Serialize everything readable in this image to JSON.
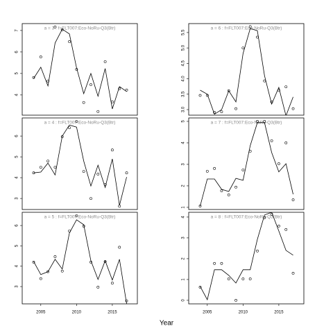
{
  "xlabel": "Year",
  "chart_data": [
    {
      "type": "line",
      "title": "a = 3 : f=FLT007:Eco-NoRu-Q3(Btr)",
      "x": [
        2004,
        2005,
        2006,
        2007,
        2008,
        2009,
        2010,
        2011,
        2012,
        2013,
        2014,
        2015,
        2016,
        2017
      ],
      "xlim": [
        2002.4,
        2018.5
      ],
      "ylim": [
        3.06,
        7.32
      ],
      "yticks": [
        4,
        5,
        6,
        7
      ],
      "series": [
        {
          "marker": "circle",
          "color": "#000000",
          "values": [
            4.81,
            5.77,
            4.65,
            7.16,
            7.03,
            6.48,
            5.19,
            3.65,
            4.48,
            3.23,
            5.55,
            3.68,
            4.29,
            4.23
          ]
        },
        {
          "marker": "none",
          "color": "#000000",
          "values": [
            4.77,
            5.29,
            4.42,
            6.42,
            7.06,
            6.84,
            5.26,
            4.06,
            5.0,
            3.94,
            5.23,
            3.35,
            4.39,
            4.16
          ]
        }
      ]
    },
    {
      "type": "line",
      "title": "a = 6 : f=FLT007:Eco-NoRu-Q3(Btr)",
      "x": [
        2004,
        2005,
        2006,
        2007,
        2008,
        2009,
        2010,
        2011,
        2012,
        2013,
        2014,
        2015,
        2016,
        2017
      ],
      "xlim": [
        2002.4,
        2018.5
      ],
      "ylim": [
        2.82,
        5.79
      ],
      "yticks": [
        {
          "value": 3,
          "label": "3.0"
        },
        3.5,
        {
          "value": 4,
          "label": "4.0"
        },
        4.5,
        {
          "value": 5,
          "label": "5.0"
        },
        5.5
      ],
      "series": [
        {
          "marker": "circle",
          "color": "#000000",
          "values": [
            3.46,
            3.46,
            2.91,
            2.93,
            3.61,
            3.03,
            5.0,
            5.69,
            5.35,
            3.93,
            3.25,
            3.63,
            3.74,
            3.03
          ]
        },
        {
          "marker": "none",
          "color": "#000000",
          "values": [
            3.63,
            3.5,
            2.85,
            3.0,
            3.61,
            3.25,
            4.82,
            5.63,
            5.56,
            4.1,
            3.18,
            3.72,
            2.8,
            3.41
          ]
        }
      ]
    },
    {
      "type": "line",
      "title": "a = 4 : f=FLT007:Eco-NoRu-Q3(Btr)",
      "x": [
        2004,
        2005,
        2006,
        2007,
        2008,
        2009,
        2010,
        2011,
        2012,
        2013,
        2014,
        2015,
        2016,
        2017
      ],
      "xlim": [
        2002.4,
        2018.5
      ],
      "ylim": [
        2.47,
        6.87
      ],
      "yticks": [
        3,
        4,
        5,
        6
      ],
      "series": [
        {
          "marker": "circle",
          "color": "#000000",
          "values": [
            4.23,
            4.5,
            4.8,
            4.5,
            5.97,
            6.4,
            6.7,
            4.3,
            3.0,
            4.17,
            3.67,
            5.33,
            2.63,
            4.23
          ]
        },
        {
          "marker": "none",
          "color": "#000000",
          "values": [
            4.23,
            4.27,
            4.7,
            4.13,
            6.0,
            6.53,
            6.43,
            4.8,
            3.6,
            4.6,
            3.53,
            4.9,
            2.67,
            4.03
          ]
        }
      ]
    },
    {
      "type": "line",
      "title": "a = 7 : f=FLT007:Eco-NoRu-Q3(Btr)",
      "x": [
        2004,
        2005,
        2006,
        2007,
        2008,
        2009,
        2010,
        2011,
        2012,
        2013,
        2014,
        2015,
        2016,
        2017
      ],
      "xlim": [
        2002.4,
        2018.5
      ],
      "ylim": [
        0.9,
        5.16
      ],
      "yticks": [
        1,
        2,
        3,
        4,
        5
      ],
      "series": [
        {
          "marker": "circle",
          "color": "#000000",
          "values": [
            1.06,
            2.68,
            2.81,
            1.77,
            1.58,
            1.94,
            2.74,
            3.61,
            5.0,
            5.0,
            4.1,
            3.03,
            4.0,
            1.35
          ]
        },
        {
          "marker": "none",
          "color": "#000000",
          "values": [
            1.06,
            2.32,
            2.32,
            1.84,
            1.74,
            2.35,
            2.26,
            3.87,
            4.94,
            4.94,
            3.55,
            2.65,
            3.03,
            1.61
          ]
        }
      ]
    },
    {
      "type": "line",
      "title": "a = 5 : f=FLT007:Eco-NoRu-Q3(Btr)",
      "x": [
        2004,
        2005,
        2006,
        2007,
        2008,
        2009,
        2010,
        2011,
        2012,
        2013,
        2014,
        2015,
        2016,
        2017
      ],
      "xlim": [
        2002.4,
        2018.5
      ],
      "ylim": [
        2.15,
        6.65
      ],
      "yticks": [
        3,
        4,
        5,
        6
      ],
      "xticks": [
        2005,
        2010,
        2015
      ],
      "series": [
        {
          "marker": "circle",
          "color": "#000000",
          "values": [
            4.2,
            3.39,
            3.73,
            4.47,
            3.76,
            5.73,
            6.48,
            5.97,
            4.2,
            2.97,
            4.23,
            3.17,
            4.93,
            2.3
          ]
        },
        {
          "marker": "none",
          "color": "#000000",
          "values": [
            4.23,
            3.59,
            3.73,
            4.34,
            3.86,
            5.63,
            6.28,
            6.04,
            4.27,
            3.35,
            4.27,
            3.32,
            4.34,
            2.15
          ]
        }
      ]
    },
    {
      "type": "line",
      "title": "a = 8 : f=FLT007:Eco-NoRu-Q3(Btr)",
      "x": [
        2004,
        2005,
        2006,
        2007,
        2008,
        2009,
        2010,
        2011,
        2012,
        2013,
        2014,
        2015,
        2016,
        2017
      ],
      "xlim": [
        2002.4,
        2018.5
      ],
      "ylim": [
        -0.17,
        4.23
      ],
      "yticks": [
        0,
        1,
        2,
        3,
        4
      ],
      "xticks": [
        2005,
        2010,
        2015
      ],
      "series": [
        {
          "marker": "circle",
          "color": "#000000",
          "values": [
            0.63,
            null,
            1.77,
            1.77,
            1.03,
            0.0,
            1.03,
            1.03,
            2.37,
            3.97,
            4.13,
            3.57,
            3.4,
            1.3
          ]
        },
        {
          "marker": "none",
          "color": "#000000",
          "values": [
            0.67,
            0.03,
            1.47,
            1.47,
            1.2,
            0.83,
            1.47,
            1.47,
            2.93,
            4.1,
            4.23,
            3.33,
            2.4,
            2.17
          ]
        }
      ]
    }
  ]
}
